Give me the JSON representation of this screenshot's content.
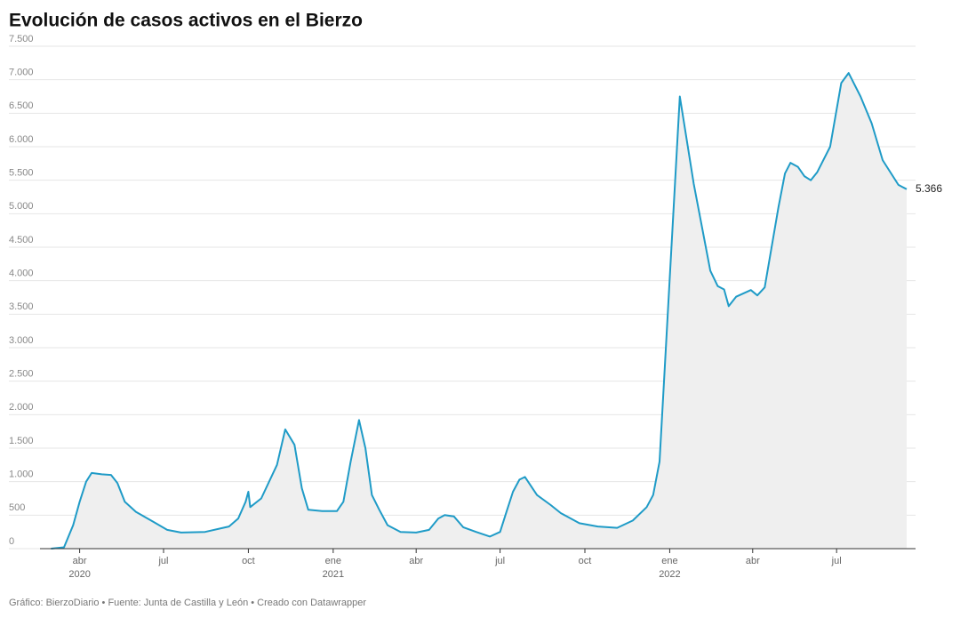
{
  "chart_data": {
    "type": "area",
    "title": "Evolución de casos activos en el Bierzo",
    "source": "Gráfico: BierzoDiario • Fuente: Junta de Castilla y León • Creado con Datawrapper",
    "color": "#1f9bc7",
    "fill": "#efefef",
    "grid": true,
    "x": [
      "2020-03-01",
      "2020-03-15",
      "2020-03-25",
      "2020-04-01",
      "2020-04-08",
      "2020-04-14",
      "2020-04-25",
      "2020-05-05",
      "2020-05-12",
      "2020-05-20",
      "2020-06-01",
      "2020-06-20",
      "2020-07-05",
      "2020-07-20",
      "2020-08-15",
      "2020-09-10",
      "2020-09-20",
      "2020-09-28",
      "2020-10-01",
      "2020-10-03",
      "2020-10-15",
      "2020-11-01",
      "2020-11-10",
      "2020-11-20",
      "2020-11-28",
      "2020-12-05",
      "2020-12-20",
      "2021-01-05",
      "2021-01-12",
      "2021-01-20",
      "2021-01-29",
      "2021-02-05",
      "2021-02-12",
      "2021-02-20",
      "2021-03-01",
      "2021-03-15",
      "2021-04-01",
      "2021-04-15",
      "2021-04-25",
      "2021-05-02",
      "2021-05-12",
      "2021-05-22",
      "2021-06-05",
      "2021-06-20",
      "2021-07-01",
      "2021-07-08",
      "2021-07-15",
      "2021-07-22",
      "2021-07-28",
      "2021-08-10",
      "2021-08-25",
      "2021-09-05",
      "2021-09-25",
      "2021-10-15",
      "2021-11-05",
      "2021-11-22",
      "2021-12-07",
      "2021-12-14",
      "2021-12-21",
      "2022-01-12",
      "2022-01-27",
      "2022-02-14",
      "2022-02-22",
      "2022-03-01",
      "2022-03-06",
      "2022-03-14",
      "2022-03-30",
      "2022-04-06",
      "2022-04-14",
      "2022-04-29",
      "2022-05-06",
      "2022-05-12",
      "2022-05-20",
      "2022-05-27",
      "2022-06-03",
      "2022-06-10",
      "2022-06-24",
      "2022-07-06",
      "2022-07-14",
      "2022-07-27",
      "2022-08-08",
      "2022-08-20",
      "2022-09-06",
      "2022-09-15"
    ],
    "values": [
      0,
      20,
      350,
      700,
      1000,
      1130,
      1110,
      1100,
      980,
      700,
      550,
      400,
      280,
      240,
      250,
      330,
      450,
      700,
      850,
      620,
      750,
      1250,
      1780,
      1550,
      900,
      580,
      560,
      560,
      700,
      1300,
      1920,
      1500,
      800,
      580,
      350,
      250,
      240,
      280,
      450,
      500,
      480,
      320,
      250,
      180,
      250,
      550,
      850,
      1030,
      1070,
      800,
      650,
      530,
      380,
      330,
      310,
      420,
      620,
      800,
      1300,
      6750,
      5450,
      4150,
      3920,
      3870,
      3620,
      3760,
      3860,
      3780,
      3900,
      5100,
      5600,
      5760,
      5700,
      5560,
      5500,
      5620,
      6000,
      6950,
      7100,
      6750,
      6350,
      5800,
      5430,
      5366
    ],
    "value_labels": {
      "83": "5.366"
    },
    "xlim": [
      "2020-02-18",
      "2022-09-15"
    ],
    "xticks": [
      {
        "value": "2020-04-01",
        "label": "abr",
        "year": "2020"
      },
      {
        "value": "2020-07-01",
        "label": "jul"
      },
      {
        "value": "2020-10-01",
        "label": "oct"
      },
      {
        "value": "2021-01-01",
        "label": "ene",
        "year": "2021"
      },
      {
        "value": "2021-04-01",
        "label": "abr"
      },
      {
        "value": "2021-07-01",
        "label": "jul"
      },
      {
        "value": "2021-10-01",
        "label": "oct"
      },
      {
        "value": "2022-01-01",
        "label": "ene",
        "year": "2022"
      },
      {
        "value": "2022-04-01",
        "label": "abr"
      },
      {
        "value": "2022-07-01",
        "label": "jul"
      }
    ],
    "ylim": [
      0,
      7500
    ],
    "yticks": [
      0,
      {
        "value": 500,
        "label": "500"
      },
      {
        "value": 1000,
        "label": "1.000"
      },
      {
        "value": 1500,
        "label": "1.500"
      },
      {
        "value": 2000,
        "label": "2.000"
      },
      {
        "value": 2500,
        "label": "2.500"
      },
      {
        "value": 3000,
        "label": "3.000"
      },
      {
        "value": 3500,
        "label": "3.500"
      },
      {
        "value": 4000,
        "label": "4.000"
      },
      {
        "value": 4500,
        "label": "4.500"
      },
      {
        "value": 5000,
        "label": "5.000"
      },
      {
        "value": 5500,
        "label": "5.500"
      },
      {
        "value": 6000,
        "label": "6.000"
      },
      {
        "value": 6500,
        "label": "6.500"
      },
      {
        "value": 7000,
        "label": "7.000"
      },
      {
        "value": 7500,
        "label": "7.500"
      }
    ]
  }
}
